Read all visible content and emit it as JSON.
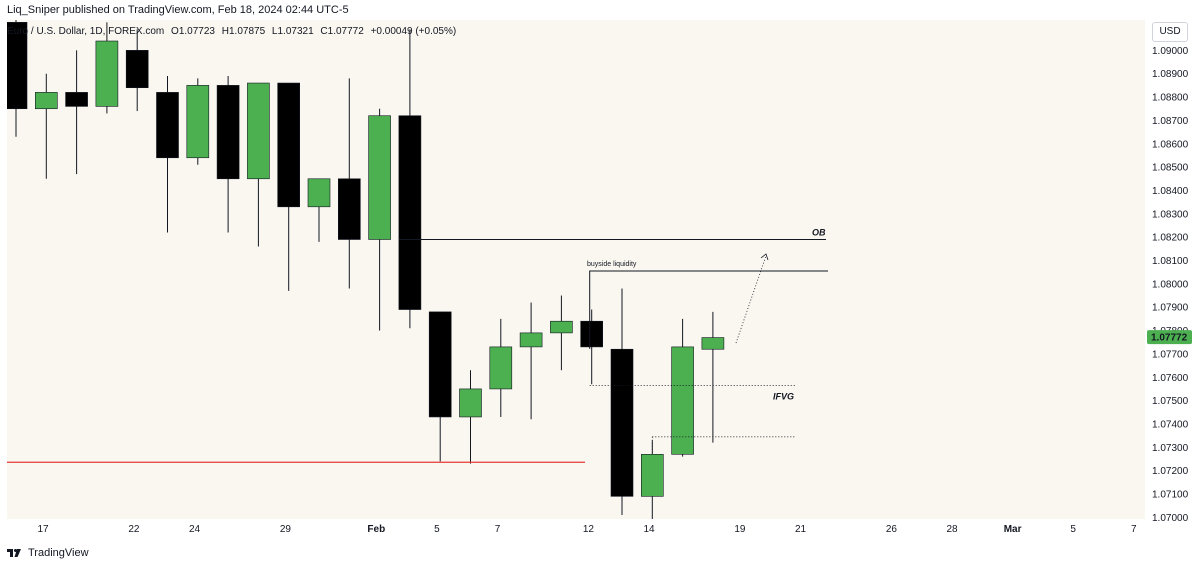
{
  "header": {
    "publisher": "Liq_Sniper published on TradingView.com, Feb 18, 2024 02:44 UTC-5"
  },
  "legend": {
    "symbol": "Euro / U.S. Dollar, 1D, FOREX.com",
    "open": "O1.07723",
    "high": "H1.07875",
    "low": "L1.07321",
    "close": "C1.07772",
    "change": "+0.00049 (+0.05%)"
  },
  "currency": "USD",
  "footer": {
    "brand": "TradingView",
    "logo_icon": "tradingview-logo-icon"
  },
  "colors": {
    "up": "#4caf50",
    "down": "#000000",
    "support_line": "#e53935",
    "price_tag": "#4caf50",
    "plot_background": "#faf7f0"
  },
  "chart_data": {
    "type": "candlestick",
    "title": "Euro / U.S. Dollar, 1D, FOREX.com",
    "ylabel": "USD",
    "ylim": [
      1.0693,
      1.0913
    ],
    "y_ticks": [
      "1.09000",
      "1.08900",
      "1.08800",
      "1.08700",
      "1.08600",
      "1.08500",
      "1.08400",
      "1.08300",
      "1.08200",
      "1.08100",
      "1.08000",
      "1.07900",
      "1.07800",
      "1.07700",
      "1.07600",
      "1.07500",
      "1.07400",
      "1.07300",
      "1.07200",
      "1.07100",
      "1.07000"
    ],
    "x_ticks": [
      {
        "label": "17",
        "index": 0
      },
      {
        "label": "22",
        "index": 3
      },
      {
        "label": "24",
        "index": 5
      },
      {
        "label": "29",
        "index": 8
      },
      {
        "label": "Feb",
        "index": 11,
        "bold": true
      },
      {
        "label": "5",
        "index": 13
      },
      {
        "label": "7",
        "index": 15
      },
      {
        "label": "12",
        "index": 18
      },
      {
        "label": "14",
        "index": 20
      },
      {
        "label": "19",
        "index": 23
      },
      {
        "label": "21",
        "index": 25
      },
      {
        "label": "26",
        "index": 28
      },
      {
        "label": "28",
        "index": 30
      },
      {
        "label": "Mar",
        "index": 32,
        "bold": true
      },
      {
        "label": "5",
        "index": 34
      },
      {
        "label": "7",
        "index": 36
      }
    ],
    "candles": [
      {
        "o": 1.0912,
        "h": 1.0918,
        "l": 1.0863,
        "c": 1.0875
      },
      {
        "o": 1.0875,
        "h": 1.089,
        "l": 1.0845,
        "c": 1.0882
      },
      {
        "o": 1.0882,
        "h": 1.09,
        "l": 1.0847,
        "c": 1.0876
      },
      {
        "o": 1.0876,
        "h": 1.0912,
        "l": 1.0873,
        "c": 1.0904
      },
      {
        "o": 1.09,
        "h": 1.0909,
        "l": 1.0874,
        "c": 1.0884
      },
      {
        "o": 1.0882,
        "h": 1.0889,
        "l": 1.0822,
        "c": 1.0854
      },
      {
        "o": 1.0854,
        "h": 1.0888,
        "l": 1.0851,
        "c": 1.0885
      },
      {
        "o": 1.0885,
        "h": 1.0889,
        "l": 1.0822,
        "c": 1.0845
      },
      {
        "o": 1.0845,
        "h": 1.0886,
        "l": 1.0816,
        "c": 1.0886
      },
      {
        "o": 1.0886,
        "h": 1.0886,
        "l": 1.0797,
        "c": 1.0833
      },
      {
        "o": 1.0833,
        "h": 1.0845,
        "l": 1.0818,
        "c": 1.0845
      },
      {
        "o": 1.0845,
        "h": 1.0888,
        "l": 1.0798,
        "c": 1.0819
      },
      {
        "o": 1.0819,
        "h": 1.0875,
        "l": 1.078,
        "c": 1.0872
      },
      {
        "o": 1.0872,
        "h": 1.0909,
        "l": 1.0781,
        "c": 1.0789
      },
      {
        "o": 1.0788,
        "h": 1.0788,
        "l": 1.0724,
        "c": 1.0743
      },
      {
        "o": 1.0743,
        "h": 1.0763,
        "l": 1.0723,
        "c": 1.0755
      },
      {
        "o": 1.0755,
        "h": 1.0785,
        "l": 1.0743,
        "c": 1.0773
      },
      {
        "o": 1.0773,
        "h": 1.0792,
        "l": 1.0742,
        "c": 1.0779
      },
      {
        "o": 1.0779,
        "h": 1.0795,
        "l": 1.0763,
        "c": 1.0784
      },
      {
        "o": 1.0784,
        "h": 1.0789,
        "l": 1.0757,
        "c": 1.0773
      },
      {
        "o": 1.0772,
        "h": 1.0798,
        "l": 1.0701,
        "c": 1.0709
      },
      {
        "o": 1.0709,
        "h": 1.0733,
        "l": 1.0696,
        "c": 1.0727
      },
      {
        "o": 1.0727,
        "h": 1.0785,
        "l": 1.0726,
        "c": 1.0773
      },
      {
        "o": 1.0772,
        "h": 1.0788,
        "l": 1.0732,
        "c": 1.0777
      }
    ],
    "last_price": "1.07772",
    "annotations": {
      "ob": {
        "label": "OB",
        "price": 1.0819
      },
      "buyside": {
        "label": "buyside liquidity",
        "price": 1.08055
      },
      "ifvg": {
        "label": "IFVG",
        "top": 1.07565,
        "bottom": 1.07345
      },
      "support": {
        "price": 1.07236
      }
    },
    "grid": false
  }
}
